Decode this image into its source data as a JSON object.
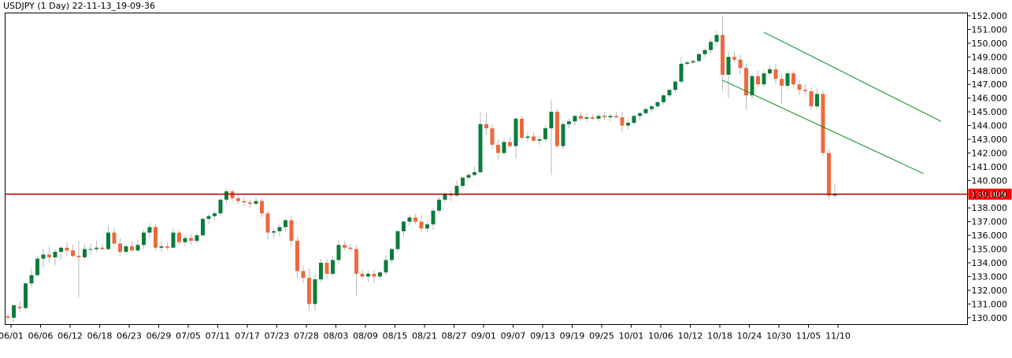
{
  "chart_data": {
    "type": "candlestick",
    "title": "USDJPY (1 Day) 22-11-13_19-09-36",
    "ylim": [
      129.5,
      152.2
    ],
    "y_ticks": [
      "130.000",
      "131.000",
      "132.000",
      "133.000",
      "134.000",
      "135.000",
      "136.000",
      "137.000",
      "138.000",
      "139.000",
      "140.000",
      "141.000",
      "142.000",
      "143.000",
      "144.000",
      "145.000",
      "146.000",
      "147.000",
      "148.000",
      "149.000",
      "150.000",
      "151.000",
      "152.000"
    ],
    "x_ticks": [
      "06/01",
      "06/06",
      "06/12",
      "06/18",
      "06/23",
      "06/29",
      "07/05",
      "07/11",
      "07/17",
      "07/23",
      "07/28",
      "08/03",
      "08/09",
      "08/15",
      "08/21",
      "08/27",
      "09/01",
      "09/07",
      "09/13",
      "09/19",
      "09/25",
      "10/01",
      "10/06",
      "10/12",
      "10/18",
      "10/24",
      "10/30",
      "11/05",
      "11/10"
    ],
    "horizontal_line": {
      "value": 139.0,
      "label": "139.009",
      "color": "#b30000"
    },
    "up_color": "#0a7d3b",
    "down_color": "#ee6a3c",
    "wick_color": "#b8b8b8",
    "channel_color": "#0a8a1e",
    "channel_lines": [
      {
        "from": {
          "index": 128,
          "value": 150.8
        },
        "to": {
          "index": 158,
          "value": 144.3
        }
      },
      {
        "from": {
          "index": 121,
          "value": 147.3
        },
        "to": {
          "index": 155,
          "value": 140.5
        }
      }
    ],
    "candles": [
      {
        "o": 130.1,
        "h": 130.3,
        "l": 129.8,
        "c": 130.0
      },
      {
        "o": 130.0,
        "h": 131.0,
        "l": 129.7,
        "c": 130.9
      },
      {
        "o": 130.8,
        "h": 131.2,
        "l": 130.4,
        "c": 130.7
      },
      {
        "o": 130.7,
        "h": 132.5,
        "l": 130.6,
        "c": 132.5
      },
      {
        "o": 132.5,
        "h": 133.6,
        "l": 132.2,
        "c": 133.1
      },
      {
        "o": 133.1,
        "h": 134.5,
        "l": 133.0,
        "c": 134.3
      },
      {
        "o": 134.3,
        "h": 135.0,
        "l": 133.6,
        "c": 134.6
      },
      {
        "o": 134.6,
        "h": 135.2,
        "l": 134.0,
        "c": 134.4
      },
      {
        "o": 134.4,
        "h": 135.0,
        "l": 133.8,
        "c": 134.8
      },
      {
        "o": 134.8,
        "h": 135.2,
        "l": 134.2,
        "c": 135.1
      },
      {
        "o": 135.1,
        "h": 135.5,
        "l": 134.5,
        "c": 134.9
      },
      {
        "o": 134.9,
        "h": 135.3,
        "l": 134.4,
        "c": 134.5
      },
      {
        "o": 134.5,
        "h": 135.6,
        "l": 131.5,
        "c": 134.4
      },
      {
        "o": 134.4,
        "h": 135.4,
        "l": 134.2,
        "c": 135.0
      },
      {
        "o": 135.0,
        "h": 135.4,
        "l": 134.6,
        "c": 135.0
      },
      {
        "o": 135.0,
        "h": 135.6,
        "l": 134.8,
        "c": 135.1
      },
      {
        "o": 135.1,
        "h": 135.4,
        "l": 134.9,
        "c": 135.0
      },
      {
        "o": 135.0,
        "h": 136.7,
        "l": 134.9,
        "c": 136.2
      },
      {
        "o": 136.2,
        "h": 136.6,
        "l": 135.2,
        "c": 135.4
      },
      {
        "o": 135.4,
        "h": 135.8,
        "l": 134.5,
        "c": 134.8
      },
      {
        "o": 134.8,
        "h": 135.4,
        "l": 134.6,
        "c": 135.2
      },
      {
        "o": 135.2,
        "h": 135.6,
        "l": 134.8,
        "c": 134.9
      },
      {
        "o": 134.9,
        "h": 135.7,
        "l": 134.8,
        "c": 135.3
      },
      {
        "o": 135.3,
        "h": 136.4,
        "l": 135.0,
        "c": 136.2
      },
      {
        "o": 136.2,
        "h": 136.9,
        "l": 135.8,
        "c": 136.6
      },
      {
        "o": 136.6,
        "h": 136.8,
        "l": 134.9,
        "c": 135.1
      },
      {
        "o": 135.1,
        "h": 135.6,
        "l": 134.8,
        "c": 135.2
      },
      {
        "o": 135.2,
        "h": 135.5,
        "l": 134.9,
        "c": 135.1
      },
      {
        "o": 135.1,
        "h": 136.5,
        "l": 135.0,
        "c": 136.2
      },
      {
        "o": 136.2,
        "h": 136.4,
        "l": 135.3,
        "c": 135.5
      },
      {
        "o": 135.5,
        "h": 136.0,
        "l": 135.2,
        "c": 135.8
      },
      {
        "o": 135.8,
        "h": 136.1,
        "l": 135.3,
        "c": 135.6
      },
      {
        "o": 135.6,
        "h": 136.2,
        "l": 135.4,
        "c": 136.0
      },
      {
        "o": 136.0,
        "h": 137.3,
        "l": 135.9,
        "c": 137.2
      },
      {
        "o": 137.2,
        "h": 137.6,
        "l": 136.8,
        "c": 137.4
      },
      {
        "o": 137.4,
        "h": 137.8,
        "l": 137.1,
        "c": 137.6
      },
      {
        "o": 137.6,
        "h": 138.7,
        "l": 137.4,
        "c": 138.6
      },
      {
        "o": 138.6,
        "h": 139.4,
        "l": 138.3,
        "c": 139.2
      },
      {
        "o": 139.2,
        "h": 139.3,
        "l": 138.5,
        "c": 138.7
      },
      {
        "o": 138.7,
        "h": 138.9,
        "l": 138.3,
        "c": 138.5
      },
      {
        "o": 138.5,
        "h": 138.8,
        "l": 138.1,
        "c": 138.4
      },
      {
        "o": 138.4,
        "h": 138.6,
        "l": 138.0,
        "c": 138.3
      },
      {
        "o": 138.3,
        "h": 138.8,
        "l": 138.2,
        "c": 138.5
      },
      {
        "o": 138.5,
        "h": 138.7,
        "l": 137.3,
        "c": 137.6
      },
      {
        "o": 137.6,
        "h": 137.8,
        "l": 135.7,
        "c": 136.2
      },
      {
        "o": 136.2,
        "h": 136.5,
        "l": 135.8,
        "c": 136.3
      },
      {
        "o": 136.3,
        "h": 136.8,
        "l": 135.9,
        "c": 136.6
      },
      {
        "o": 136.6,
        "h": 137.2,
        "l": 136.3,
        "c": 137.1
      },
      {
        "o": 137.1,
        "h": 137.4,
        "l": 135.2,
        "c": 135.6
      },
      {
        "o": 135.6,
        "h": 135.9,
        "l": 132.9,
        "c": 133.4
      },
      {
        "o": 133.4,
        "h": 133.8,
        "l": 132.5,
        "c": 132.9
      },
      {
        "o": 132.9,
        "h": 133.6,
        "l": 130.5,
        "c": 131.0
      },
      {
        "o": 131.0,
        "h": 133.2,
        "l": 130.5,
        "c": 132.8
      },
      {
        "o": 132.8,
        "h": 134.3,
        "l": 132.6,
        "c": 134.0
      },
      {
        "o": 134.0,
        "h": 134.3,
        "l": 132.8,
        "c": 133.2
      },
      {
        "o": 133.2,
        "h": 134.5,
        "l": 133.0,
        "c": 134.2
      },
      {
        "o": 134.2,
        "h": 135.6,
        "l": 133.9,
        "c": 135.3
      },
      {
        "o": 135.3,
        "h": 135.6,
        "l": 134.9,
        "c": 135.1
      },
      {
        "o": 135.1,
        "h": 135.4,
        "l": 134.8,
        "c": 135.0
      },
      {
        "o": 135.0,
        "h": 135.3,
        "l": 131.6,
        "c": 133.2
      },
      {
        "o": 133.2,
        "h": 133.5,
        "l": 132.8,
        "c": 133.0
      },
      {
        "o": 133.0,
        "h": 133.4,
        "l": 132.6,
        "c": 133.2
      },
      {
        "o": 133.2,
        "h": 133.5,
        "l": 132.5,
        "c": 133.0
      },
      {
        "o": 133.0,
        "h": 133.4,
        "l": 132.8,
        "c": 133.3
      },
      {
        "o": 133.3,
        "h": 134.5,
        "l": 133.1,
        "c": 134.2
      },
      {
        "o": 134.2,
        "h": 135.1,
        "l": 134.0,
        "c": 135.0
      },
      {
        "o": 135.0,
        "h": 136.4,
        "l": 134.8,
        "c": 136.3
      },
      {
        "o": 136.3,
        "h": 137.1,
        "l": 135.9,
        "c": 137.0
      },
      {
        "o": 137.0,
        "h": 137.5,
        "l": 136.7,
        "c": 137.3
      },
      {
        "o": 137.3,
        "h": 137.6,
        "l": 136.8,
        "c": 137.0
      },
      {
        "o": 137.0,
        "h": 137.5,
        "l": 136.2,
        "c": 136.5
      },
      {
        "o": 136.5,
        "h": 137.0,
        "l": 136.2,
        "c": 136.8
      },
      {
        "o": 136.8,
        "h": 138.0,
        "l": 136.4,
        "c": 137.8
      },
      {
        "o": 137.8,
        "h": 138.8,
        "l": 137.6,
        "c": 138.6
      },
      {
        "o": 138.6,
        "h": 139.2,
        "l": 138.4,
        "c": 139.0
      },
      {
        "o": 139.0,
        "h": 139.3,
        "l": 138.5,
        "c": 138.9
      },
      {
        "o": 138.9,
        "h": 140.0,
        "l": 138.8,
        "c": 139.6
      },
      {
        "o": 139.6,
        "h": 140.3,
        "l": 139.4,
        "c": 140.2
      },
      {
        "o": 140.2,
        "h": 140.6,
        "l": 140.0,
        "c": 140.4
      },
      {
        "o": 140.4,
        "h": 141.0,
        "l": 140.3,
        "c": 140.6
      },
      {
        "o": 140.6,
        "h": 145.0,
        "l": 140.5,
        "c": 144.1
      },
      {
        "o": 144.1,
        "h": 144.9,
        "l": 143.3,
        "c": 143.8
      },
      {
        "o": 143.8,
        "h": 144.1,
        "l": 142.3,
        "c": 142.6
      },
      {
        "o": 142.6,
        "h": 143.0,
        "l": 141.5,
        "c": 142.0
      },
      {
        "o": 142.0,
        "h": 143.0,
        "l": 141.8,
        "c": 142.8
      },
      {
        "o": 142.8,
        "h": 143.2,
        "l": 142.4,
        "c": 142.5
      },
      {
        "o": 142.5,
        "h": 144.6,
        "l": 141.6,
        "c": 144.5
      },
      {
        "o": 144.5,
        "h": 144.7,
        "l": 143.0,
        "c": 143.1
      },
      {
        "o": 143.1,
        "h": 143.5,
        "l": 142.8,
        "c": 143.2
      },
      {
        "o": 143.2,
        "h": 143.5,
        "l": 142.8,
        "c": 142.9
      },
      {
        "o": 142.9,
        "h": 143.3,
        "l": 142.6,
        "c": 143.0
      },
      {
        "o": 143.0,
        "h": 144.0,
        "l": 142.8,
        "c": 143.8
      },
      {
        "o": 143.8,
        "h": 145.9,
        "l": 140.4,
        "c": 145.0
      },
      {
        "o": 145.0,
        "h": 145.2,
        "l": 142.3,
        "c": 142.5
      },
      {
        "o": 142.5,
        "h": 144.3,
        "l": 142.3,
        "c": 144.1
      },
      {
        "o": 144.1,
        "h": 144.5,
        "l": 143.8,
        "c": 144.3
      },
      {
        "o": 144.3,
        "h": 144.8,
        "l": 144.0,
        "c": 144.7
      },
      {
        "o": 144.7,
        "h": 145.0,
        "l": 144.3,
        "c": 144.5
      },
      {
        "o": 144.5,
        "h": 144.9,
        "l": 144.3,
        "c": 144.6
      },
      {
        "o": 144.6,
        "h": 144.8,
        "l": 144.4,
        "c": 144.5
      },
      {
        "o": 144.5,
        "h": 144.9,
        "l": 144.3,
        "c": 144.7
      },
      {
        "o": 144.7,
        "h": 145.0,
        "l": 144.4,
        "c": 144.6
      },
      {
        "o": 144.6,
        "h": 144.9,
        "l": 144.3,
        "c": 144.7
      },
      {
        "o": 144.7,
        "h": 145.0,
        "l": 144.5,
        "c": 144.6
      },
      {
        "o": 144.6,
        "h": 145.0,
        "l": 143.5,
        "c": 144.0
      },
      {
        "o": 144.0,
        "h": 144.4,
        "l": 143.7,
        "c": 144.2
      },
      {
        "o": 144.2,
        "h": 144.8,
        "l": 144.0,
        "c": 144.7
      },
      {
        "o": 144.7,
        "h": 145.0,
        "l": 144.4,
        "c": 144.9
      },
      {
        "o": 144.9,
        "h": 145.3,
        "l": 144.8,
        "c": 145.2
      },
      {
        "o": 145.2,
        "h": 145.5,
        "l": 145.0,
        "c": 145.4
      },
      {
        "o": 145.4,
        "h": 145.8,
        "l": 145.2,
        "c": 145.7
      },
      {
        "o": 145.7,
        "h": 146.3,
        "l": 145.5,
        "c": 146.2
      },
      {
        "o": 146.2,
        "h": 146.7,
        "l": 146.0,
        "c": 146.6
      },
      {
        "o": 146.6,
        "h": 147.3,
        "l": 146.4,
        "c": 147.2
      },
      {
        "o": 147.2,
        "h": 149.0,
        "l": 147.0,
        "c": 148.5
      },
      {
        "o": 148.5,
        "h": 148.7,
        "l": 148.4,
        "c": 148.6
      },
      {
        "o": 148.6,
        "h": 148.8,
        "l": 148.5,
        "c": 148.7
      },
      {
        "o": 148.7,
        "h": 149.3,
        "l": 148.6,
        "c": 149.2
      },
      {
        "o": 149.2,
        "h": 149.6,
        "l": 149.0,
        "c": 149.5
      },
      {
        "o": 149.5,
        "h": 150.3,
        "l": 149.3,
        "c": 150.1
      },
      {
        "o": 150.1,
        "h": 150.9,
        "l": 149.8,
        "c": 150.6
      },
      {
        "o": 150.6,
        "h": 152.0,
        "l": 146.5,
        "c": 147.7
      },
      {
        "o": 147.7,
        "h": 149.4,
        "l": 146.0,
        "c": 149.0
      },
      {
        "o": 149.0,
        "h": 149.4,
        "l": 148.6,
        "c": 148.8
      },
      {
        "o": 148.8,
        "h": 149.2,
        "l": 147.7,
        "c": 148.2
      },
      {
        "o": 148.2,
        "h": 148.5,
        "l": 145.1,
        "c": 146.2
      },
      {
        "o": 146.2,
        "h": 147.8,
        "l": 145.9,
        "c": 147.6
      },
      {
        "o": 147.6,
        "h": 148.0,
        "l": 146.8,
        "c": 147.0
      },
      {
        "o": 147.0,
        "h": 148.0,
        "l": 146.8,
        "c": 147.8
      },
      {
        "o": 147.8,
        "h": 148.4,
        "l": 147.6,
        "c": 148.1
      },
      {
        "o": 148.1,
        "h": 148.5,
        "l": 147.0,
        "c": 147.4
      },
      {
        "o": 147.4,
        "h": 147.8,
        "l": 145.6,
        "c": 146.9
      },
      {
        "o": 146.9,
        "h": 148.0,
        "l": 146.6,
        "c": 147.8
      },
      {
        "o": 147.8,
        "h": 148.0,
        "l": 146.8,
        "c": 147.0
      },
      {
        "o": 147.0,
        "h": 147.3,
        "l": 146.2,
        "c": 146.6
      },
      {
        "o": 146.6,
        "h": 147.0,
        "l": 146.2,
        "c": 146.5
      },
      {
        "o": 146.5,
        "h": 146.8,
        "l": 145.1,
        "c": 145.4
      },
      {
        "o": 145.4,
        "h": 146.7,
        "l": 145.2,
        "c": 146.3
      },
      {
        "o": 146.3,
        "h": 146.5,
        "l": 141.8,
        "c": 142.0
      },
      {
        "o": 142.0,
        "h": 142.3,
        "l": 138.6,
        "c": 138.9
      },
      {
        "o": 138.9,
        "h": 139.8,
        "l": 138.7,
        "c": 139.0
      }
    ]
  }
}
